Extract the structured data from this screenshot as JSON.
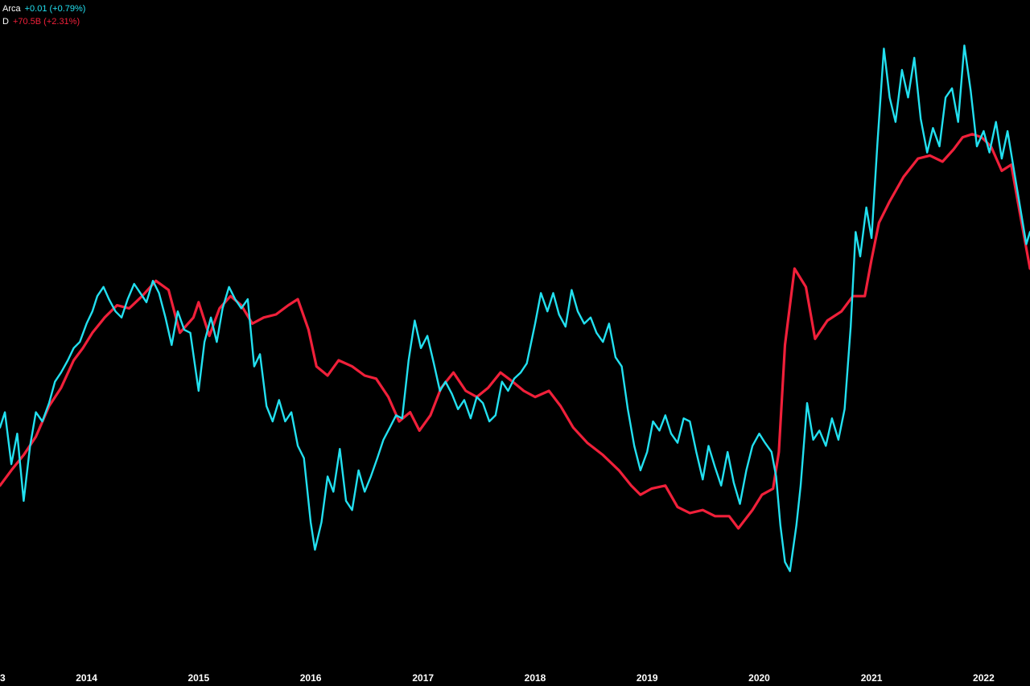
{
  "legend": [
    {
      "name": "Arca",
      "change": "+0.01 (+0.79%)",
      "color": "#22e0f0"
    },
    {
      "name": "D",
      "change": "+70.5B (+2.31%)",
      "color": "#f0203a"
    }
  ],
  "chart_data": {
    "type": "line",
    "background": "#000000",
    "grid": false,
    "xlim": [
      "2013-03-25",
      "2022-06-01"
    ],
    "x_ticks": [
      {
        "label": "3",
        "date": "2013-01-01"
      },
      {
        "label": "2014",
        "date": "2014-01-01"
      },
      {
        "label": "2015",
        "date": "2015-01-01"
      },
      {
        "label": "2016",
        "date": "2016-01-01"
      },
      {
        "label": "2017",
        "date": "2017-01-01"
      },
      {
        "label": "2018",
        "date": "2018-01-01"
      },
      {
        "label": "2019",
        "date": "2019-01-01"
      },
      {
        "label": "2020",
        "date": "2020-01-01"
      },
      {
        "label": "2021",
        "date": "2021-01-01"
      },
      {
        "label": "2022",
        "date": "2022-01-01"
      }
    ],
    "series": [
      {
        "name": "Arca",
        "color": "#22e0f0",
        "axis": "left",
        "ylim": [
          0,
          100
        ],
        "points": [
          [
            "2013-03-25",
            34.0
          ],
          [
            "2013-04-10",
            36.5
          ],
          [
            "2013-05-01",
            28.0
          ],
          [
            "2013-05-20",
            33.0
          ],
          [
            "2013-06-10",
            22.0
          ],
          [
            "2013-07-01",
            31.0
          ],
          [
            "2013-07-20",
            36.5
          ],
          [
            "2013-08-10",
            35.0
          ],
          [
            "2013-09-01",
            38.0
          ],
          [
            "2013-09-20",
            41.5
          ],
          [
            "2013-10-10",
            43.0
          ],
          [
            "2013-11-01",
            45.0
          ],
          [
            "2013-11-20",
            47.0
          ],
          [
            "2013-12-10",
            48.0
          ],
          [
            "2014-01-01",
            51.0
          ],
          [
            "2014-01-20",
            53.0
          ],
          [
            "2014-02-05",
            55.5
          ],
          [
            "2014-02-25",
            57.0
          ],
          [
            "2014-03-15",
            55.0
          ],
          [
            "2014-04-05",
            53.0
          ],
          [
            "2014-04-25",
            52.0
          ],
          [
            "2014-05-15",
            55.0
          ],
          [
            "2014-06-05",
            57.5
          ],
          [
            "2014-06-25",
            56.0
          ],
          [
            "2014-07-15",
            54.5
          ],
          [
            "2014-08-05",
            58.0
          ],
          [
            "2014-08-25",
            56.0
          ],
          [
            "2014-09-15",
            52.0
          ],
          [
            "2014-10-05",
            47.5
          ],
          [
            "2014-10-25",
            53.0
          ],
          [
            "2014-11-15",
            50.0
          ],
          [
            "2014-12-05",
            49.5
          ],
          [
            "2015-01-01",
            40.0
          ],
          [
            "2015-01-20",
            48.0
          ],
          [
            "2015-02-10",
            52.0
          ],
          [
            "2015-03-01",
            48.0
          ],
          [
            "2015-03-20",
            53.5
          ],
          [
            "2015-04-10",
            57.0
          ],
          [
            "2015-04-30",
            55.0
          ],
          [
            "2015-05-20",
            53.5
          ],
          [
            "2015-06-10",
            55.0
          ],
          [
            "2015-07-01",
            44.0
          ],
          [
            "2015-07-20",
            46.0
          ],
          [
            "2015-08-10",
            37.5
          ],
          [
            "2015-08-30",
            35.0
          ],
          [
            "2015-09-20",
            38.5
          ],
          [
            "2015-10-10",
            35.0
          ],
          [
            "2015-10-30",
            36.5
          ],
          [
            "2015-11-20",
            31.0
          ],
          [
            "2015-12-10",
            29.0
          ],
          [
            "2016-01-01",
            18.5
          ],
          [
            "2016-01-15",
            14.0
          ],
          [
            "2016-02-05",
            18.5
          ],
          [
            "2016-02-25",
            26.0
          ],
          [
            "2016-03-15",
            23.5
          ],
          [
            "2016-04-05",
            30.5
          ],
          [
            "2016-04-25",
            22.0
          ],
          [
            "2016-05-15",
            20.5
          ],
          [
            "2016-06-05",
            27.0
          ],
          [
            "2016-06-25",
            23.5
          ],
          [
            "2016-07-15",
            26.0
          ],
          [
            "2016-08-05",
            29.0
          ],
          [
            "2016-08-25",
            32.0
          ],
          [
            "2016-09-15",
            34.0
          ],
          [
            "2016-10-05",
            36.0
          ],
          [
            "2016-10-25",
            35.5
          ],
          [
            "2016-11-15",
            45.0
          ],
          [
            "2016-12-05",
            51.5
          ],
          [
            "2016-12-25",
            47.0
          ],
          [
            "2017-01-15",
            49.0
          ],
          [
            "2017-02-05",
            44.5
          ],
          [
            "2017-02-25",
            40.0
          ],
          [
            "2017-03-15",
            41.5
          ],
          [
            "2017-04-05",
            39.5
          ],
          [
            "2017-04-25",
            37.0
          ],
          [
            "2017-05-15",
            38.5
          ],
          [
            "2017-06-05",
            35.5
          ],
          [
            "2017-06-25",
            39.0
          ],
          [
            "2017-07-15",
            38.0
          ],
          [
            "2017-08-05",
            35.0
          ],
          [
            "2017-08-25",
            36.0
          ],
          [
            "2017-09-15",
            41.5
          ],
          [
            "2017-10-05",
            40.0
          ],
          [
            "2017-10-25",
            42.0
          ],
          [
            "2017-11-15",
            43.0
          ],
          [
            "2017-12-05",
            44.5
          ],
          [
            "2018-01-01",
            51.0
          ],
          [
            "2018-01-20",
            56.0
          ],
          [
            "2018-02-10",
            53.0
          ],
          [
            "2018-03-01",
            56.0
          ],
          [
            "2018-03-20",
            52.5
          ],
          [
            "2018-04-10",
            50.5
          ],
          [
            "2018-04-30",
            56.5
          ],
          [
            "2018-05-20",
            53.0
          ],
          [
            "2018-06-10",
            51.0
          ],
          [
            "2018-07-01",
            52.0
          ],
          [
            "2018-07-20",
            49.5
          ],
          [
            "2018-08-10",
            48.0
          ],
          [
            "2018-08-30",
            51.0
          ],
          [
            "2018-09-20",
            45.5
          ],
          [
            "2018-10-10",
            44.0
          ],
          [
            "2018-10-30",
            37.0
          ],
          [
            "2018-11-20",
            31.0
          ],
          [
            "2018-12-10",
            27.0
          ],
          [
            "2019-01-01",
            30.0
          ],
          [
            "2019-01-20",
            35.0
          ],
          [
            "2019-02-10",
            33.5
          ],
          [
            "2019-03-01",
            36.0
          ],
          [
            "2019-03-20",
            33.0
          ],
          [
            "2019-04-10",
            31.5
          ],
          [
            "2019-04-30",
            35.5
          ],
          [
            "2019-05-20",
            35.0
          ],
          [
            "2019-06-10",
            30.0
          ],
          [
            "2019-07-01",
            25.5
          ],
          [
            "2019-07-20",
            31.0
          ],
          [
            "2019-08-10",
            27.5
          ],
          [
            "2019-08-30",
            24.5
          ],
          [
            "2019-09-20",
            30.0
          ],
          [
            "2019-10-10",
            25.0
          ],
          [
            "2019-10-30",
            21.5
          ],
          [
            "2019-11-20",
            27.0
          ],
          [
            "2019-12-10",
            31.0
          ],
          [
            "2020-01-01",
            33.0
          ],
          [
            "2020-01-20",
            31.5
          ],
          [
            "2020-02-10",
            30.0
          ],
          [
            "2020-02-25",
            26.0
          ],
          [
            "2020-03-10",
            18.0
          ],
          [
            "2020-03-25",
            12.0
          ],
          [
            "2020-04-10",
            10.5
          ],
          [
            "2020-05-01",
            18.0
          ],
          [
            "2020-05-15",
            24.5
          ],
          [
            "2020-06-05",
            38.0
          ],
          [
            "2020-06-25",
            32.0
          ],
          [
            "2020-07-15",
            33.5
          ],
          [
            "2020-08-05",
            31.0
          ],
          [
            "2020-08-25",
            35.5
          ],
          [
            "2020-09-15",
            32.0
          ],
          [
            "2020-10-05",
            37.0
          ],
          [
            "2020-10-25",
            50.5
          ],
          [
            "2020-11-10",
            66.0
          ],
          [
            "2020-11-25",
            62.0
          ],
          [
            "2020-12-15",
            70.0
          ],
          [
            "2021-01-01",
            65.0
          ],
          [
            "2021-01-20",
            80.5
          ],
          [
            "2021-02-10",
            96.0
          ],
          [
            "2021-03-01",
            88.0
          ],
          [
            "2021-03-20",
            84.0
          ],
          [
            "2021-04-10",
            92.5
          ],
          [
            "2021-04-30",
            88.0
          ],
          [
            "2021-05-20",
            94.5
          ],
          [
            "2021-06-10",
            84.5
          ],
          [
            "2021-07-01",
            79.0
          ],
          [
            "2021-07-20",
            83.0
          ],
          [
            "2021-08-10",
            80.0
          ],
          [
            "2021-08-30",
            88.0
          ],
          [
            "2021-09-20",
            89.5
          ],
          [
            "2021-10-10",
            84.0
          ],
          [
            "2021-10-30",
            96.5
          ],
          [
            "2021-11-20",
            89.0
          ],
          [
            "2021-12-10",
            80.0
          ],
          [
            "2022-01-01",
            82.5
          ],
          [
            "2022-01-20",
            79.0
          ],
          [
            "2022-02-10",
            84.0
          ],
          [
            "2022-03-01",
            78.0
          ],
          [
            "2022-03-20",
            82.5
          ],
          [
            "2022-04-10",
            76.0
          ],
          [
            "2022-04-30",
            70.0
          ],
          [
            "2022-05-20",
            64.0
          ],
          [
            "2022-06-01",
            66.0
          ]
        ]
      },
      {
        "name": "D",
        "color": "#f0203a",
        "axis": "right",
        "ylim": [
          0,
          100
        ],
        "points": [
          [
            "2013-03-25",
            24.5
          ],
          [
            "2013-05-01",
            27.0
          ],
          [
            "2013-06-10",
            29.5
          ],
          [
            "2013-07-20",
            32.5
          ],
          [
            "2013-09-01",
            37.5
          ],
          [
            "2013-10-10",
            40.5
          ],
          [
            "2013-11-20",
            45.0
          ],
          [
            "2013-12-20",
            47.0
          ],
          [
            "2014-01-20",
            49.5
          ],
          [
            "2014-03-01",
            52.0
          ],
          [
            "2014-04-10",
            54.0
          ],
          [
            "2014-05-20",
            53.5
          ],
          [
            "2014-07-01",
            55.5
          ],
          [
            "2014-08-15",
            58.0
          ],
          [
            "2014-09-25",
            56.5
          ],
          [
            "2014-11-01",
            49.5
          ],
          [
            "2014-12-15",
            52.0
          ],
          [
            "2015-01-01",
            54.5
          ],
          [
            "2015-02-05",
            49.0
          ],
          [
            "2015-03-10",
            53.5
          ],
          [
            "2015-04-15",
            55.5
          ],
          [
            "2015-05-20",
            54.0
          ],
          [
            "2015-06-25",
            51.0
          ],
          [
            "2015-08-01",
            52.0
          ],
          [
            "2015-09-10",
            52.5
          ],
          [
            "2015-10-20",
            54.0
          ],
          [
            "2015-11-20",
            55.0
          ],
          [
            "2015-12-25",
            50.0
          ],
          [
            "2016-01-20",
            44.0
          ],
          [
            "2016-02-25",
            42.5
          ],
          [
            "2016-04-01",
            45.0
          ],
          [
            "2016-05-15",
            44.0
          ],
          [
            "2016-06-25",
            42.5
          ],
          [
            "2016-08-01",
            42.0
          ],
          [
            "2016-09-10",
            39.0
          ],
          [
            "2016-10-15",
            35.0
          ],
          [
            "2016-11-20",
            36.5
          ],
          [
            "2016-12-20",
            33.5
          ],
          [
            "2017-01-25",
            36.0
          ],
          [
            "2017-03-01",
            40.5
          ],
          [
            "2017-04-10",
            43.0
          ],
          [
            "2017-05-20",
            40.0
          ],
          [
            "2017-06-25",
            39.0
          ],
          [
            "2017-08-01",
            40.5
          ],
          [
            "2017-09-10",
            43.0
          ],
          [
            "2017-10-20",
            41.5
          ],
          [
            "2017-11-25",
            40.0
          ],
          [
            "2018-01-01",
            39.0
          ],
          [
            "2018-02-15",
            40.0
          ],
          [
            "2018-03-25",
            37.5
          ],
          [
            "2018-05-05",
            34.0
          ],
          [
            "2018-06-20",
            31.5
          ],
          [
            "2018-08-10",
            29.5
          ],
          [
            "2018-10-01",
            27.0
          ],
          [
            "2018-11-10",
            24.5
          ],
          [
            "2018-12-10",
            23.0
          ],
          [
            "2019-01-15",
            24.0
          ],
          [
            "2019-03-01",
            24.5
          ],
          [
            "2019-04-10",
            21.0
          ],
          [
            "2019-05-20",
            20.0
          ],
          [
            "2019-07-01",
            20.5
          ],
          [
            "2019-08-10",
            19.5
          ],
          [
            "2019-09-25",
            19.5
          ],
          [
            "2019-10-25",
            17.5
          ],
          [
            "2019-12-10",
            20.5
          ],
          [
            "2020-01-10",
            23.0
          ],
          [
            "2020-02-15",
            24.0
          ],
          [
            "2020-03-05",
            30.0
          ],
          [
            "2020-03-25",
            47.5
          ],
          [
            "2020-04-25",
            60.0
          ],
          [
            "2020-06-01",
            57.0
          ],
          [
            "2020-07-01",
            48.5
          ],
          [
            "2020-08-10",
            51.5
          ],
          [
            "2020-09-25",
            53.0
          ],
          [
            "2020-11-01",
            55.5
          ],
          [
            "2020-12-10",
            55.5
          ],
          [
            "2021-01-01",
            61.5
          ],
          [
            "2021-01-25",
            67.5
          ],
          [
            "2021-03-01",
            71.0
          ],
          [
            "2021-04-15",
            75.0
          ],
          [
            "2021-06-01",
            78.0
          ],
          [
            "2021-07-10",
            78.5
          ],
          [
            "2021-08-20",
            77.5
          ],
          [
            "2021-09-25",
            79.5
          ],
          [
            "2021-10-25",
            81.5
          ],
          [
            "2021-11-25",
            82.0
          ],
          [
            "2021-12-25",
            81.5
          ],
          [
            "2022-01-25",
            80.0
          ],
          [
            "2022-03-01",
            76.0
          ],
          [
            "2022-04-01",
            77.0
          ],
          [
            "2022-05-01",
            68.5
          ],
          [
            "2022-06-01",
            60.0
          ]
        ]
      }
    ]
  }
}
